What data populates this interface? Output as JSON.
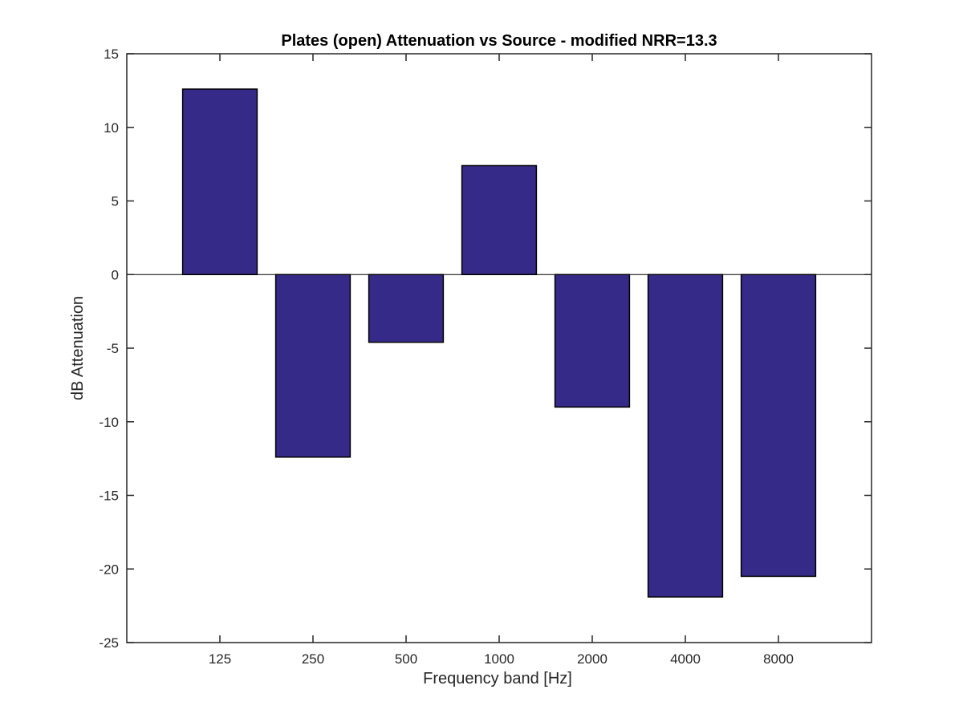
{
  "chart_data": {
    "type": "bar",
    "title": "Plates (open) Attenuation vs Source - modified NRR=13.3",
    "xlabel": "Frequency band [Hz]",
    "ylabel": "dB Attenuation",
    "categories": [
      "125",
      "250",
      "500",
      "1000",
      "2000",
      "4000",
      "8000"
    ],
    "values": [
      12.6,
      -12.4,
      -4.6,
      7.4,
      -9.0,
      -21.9,
      -20.5
    ],
    "ylim": [
      -25,
      15
    ],
    "yticks": [
      15,
      10,
      5,
      0,
      -5,
      -10,
      -15,
      -20,
      -25
    ],
    "ytick_labels": [
      "15",
      "10",
      "5",
      "0",
      "-5",
      "-10",
      "-15",
      "-20",
      "-25"
    ],
    "grid": false,
    "legend": "none",
    "bar_color": "#352a87",
    "edge_color": "#000000"
  }
}
